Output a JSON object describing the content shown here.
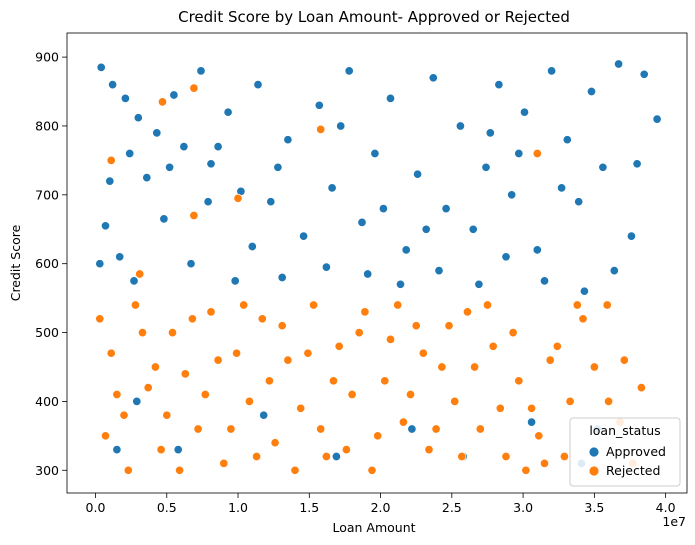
{
  "chart_data": {
    "type": "scatter",
    "title": "Credit Score by Loan Amount- Approved or Rejected",
    "xlabel": "Loan Amount",
    "ylabel": "Credit Score",
    "x_offset_label": "1e7",
    "xlim": [
      -2000000,
      41500000
    ],
    "ylim": [
      267,
      935
    ],
    "x_ticks": [
      0,
      5000000,
      10000000,
      15000000,
      20000000,
      25000000,
      30000000,
      35000000,
      40000000
    ],
    "x_tick_labels": [
      "0.0",
      "0.5",
      "1.0",
      "1.5",
      "2.0",
      "2.5",
      "3.0",
      "3.5",
      "4.0"
    ],
    "y_ticks": [
      300,
      400,
      500,
      600,
      700,
      800,
      900
    ],
    "y_tick_labels": [
      "300",
      "400",
      "500",
      "600",
      "700",
      "800",
      "900"
    ],
    "grid": false,
    "legend": {
      "title": "loan_status",
      "placement": "lower-right",
      "entries": [
        "Approved",
        "Rejected"
      ]
    },
    "series": [
      {
        "name": "Approved",
        "color": "#1f77b4",
        "points": [
          [
            400000,
            885
          ],
          [
            1200000,
            860
          ],
          [
            2100000,
            840
          ],
          [
            3000000,
            812
          ],
          [
            4300000,
            790
          ],
          [
            5500000,
            845
          ],
          [
            6200000,
            770
          ],
          [
            7400000,
            880
          ],
          [
            8100000,
            745
          ],
          [
            9300000,
            820
          ],
          [
            10200000,
            705
          ],
          [
            11400000,
            860
          ],
          [
            12300000,
            690
          ],
          [
            13500000,
            780
          ],
          [
            14600000,
            640
          ],
          [
            15700000,
            830
          ],
          [
            16600000,
            710
          ],
          [
            17800000,
            880
          ],
          [
            18700000,
            660
          ],
          [
            19600000,
            760
          ],
          [
            20700000,
            840
          ],
          [
            21800000,
            620
          ],
          [
            22600000,
            730
          ],
          [
            23700000,
            870
          ],
          [
            24600000,
            680
          ],
          [
            25600000,
            800
          ],
          [
            26500000,
            650
          ],
          [
            27400000,
            740
          ],
          [
            28300000,
            860
          ],
          [
            29200000,
            700
          ],
          [
            30100000,
            820
          ],
          [
            31000000,
            620
          ],
          [
            32000000,
            880
          ],
          [
            33100000,
            780
          ],
          [
            33900000,
            690
          ],
          [
            34800000,
            850
          ],
          [
            35600000,
            740
          ],
          [
            36700000,
            890
          ],
          [
            37600000,
            640
          ],
          [
            38500000,
            875
          ],
          [
            39400000,
            810
          ],
          [
            38000000,
            745
          ],
          [
            35200000,
            360
          ],
          [
            34300000,
            560
          ],
          [
            36400000,
            590
          ],
          [
            700000,
            655
          ],
          [
            1700000,
            610
          ],
          [
            2700000,
            575
          ],
          [
            3600000,
            725
          ],
          [
            4800000,
            665
          ],
          [
            6700000,
            600
          ],
          [
            7900000,
            690
          ],
          [
            9800000,
            575
          ],
          [
            11000000,
            625
          ],
          [
            13100000,
            580
          ],
          [
            16200000,
            595
          ],
          [
            19100000,
            585
          ],
          [
            21400000,
            570
          ],
          [
            24100000,
            590
          ],
          [
            26900000,
            570
          ],
          [
            28800000,
            610
          ],
          [
            31500000,
            575
          ],
          [
            300000,
            600
          ],
          [
            1000000,
            720
          ],
          [
            2400000,
            760
          ],
          [
            5200000,
            740
          ],
          [
            8600000,
            770
          ],
          [
            12800000,
            740
          ],
          [
            17200000,
            800
          ],
          [
            20200000,
            680
          ],
          [
            23200000,
            650
          ],
          [
            27700000,
            790
          ],
          [
            29700000,
            760
          ],
          [
            32700000,
            710
          ],
          [
            1500000,
            330
          ],
          [
            2900000,
            400
          ],
          [
            5800000,
            330
          ],
          [
            11800000,
            380
          ],
          [
            16900000,
            320
          ],
          [
            22200000,
            360
          ],
          [
            25800000,
            320
          ],
          [
            30600000,
            370
          ],
          [
            34100000,
            310
          ]
        ]
      },
      {
        "name": "Rejected",
        "color": "#ff7f0e",
        "points": [
          [
            300000,
            520
          ],
          [
            1100000,
            470
          ],
          [
            2000000,
            380
          ],
          [
            2800000,
            540
          ],
          [
            3700000,
            420
          ],
          [
            4600000,
            330
          ],
          [
            5400000,
            500
          ],
          [
            6300000,
            440
          ],
          [
            7200000,
            360
          ],
          [
            8100000,
            530
          ],
          [
            9000000,
            310
          ],
          [
            9900000,
            470
          ],
          [
            10800000,
            400
          ],
          [
            11700000,
            520
          ],
          [
            12600000,
            340
          ],
          [
            13500000,
            460
          ],
          [
            14400000,
            390
          ],
          [
            15300000,
            540
          ],
          [
            16200000,
            320
          ],
          [
            17100000,
            480
          ],
          [
            18000000,
            410
          ],
          [
            18900000,
            530
          ],
          [
            19800000,
            350
          ],
          [
            20700000,
            490
          ],
          [
            21600000,
            370
          ],
          [
            22500000,
            510
          ],
          [
            23400000,
            330
          ],
          [
            24300000,
            450
          ],
          [
            25200000,
            400
          ],
          [
            26100000,
            530
          ],
          [
            27000000,
            360
          ],
          [
            27900000,
            480
          ],
          [
            28800000,
            320
          ],
          [
            29700000,
            430
          ],
          [
            30600000,
            390
          ],
          [
            31500000,
            310
          ],
          [
            32400000,
            480
          ],
          [
            33300000,
            400
          ],
          [
            34200000,
            520
          ],
          [
            35000000,
            450
          ],
          [
            35900000,
            540
          ],
          [
            36800000,
            370
          ],
          [
            37700000,
            310
          ],
          [
            38300000,
            420
          ],
          [
            37100000,
            460
          ],
          [
            36000000,
            400
          ],
          [
            33800000,
            540
          ],
          [
            31900000,
            460
          ],
          [
            700000,
            350
          ],
          [
            1500000,
            410
          ],
          [
            2300000,
            300
          ],
          [
            3300000,
            500
          ],
          [
            4200000,
            450
          ],
          [
            5000000,
            380
          ],
          [
            5900000,
            300
          ],
          [
            6800000,
            520
          ],
          [
            7700000,
            410
          ],
          [
            8600000,
            460
          ],
          [
            9500000,
            360
          ],
          [
            10400000,
            540
          ],
          [
            11300000,
            320
          ],
          [
            12200000,
            430
          ],
          [
            13100000,
            510
          ],
          [
            14000000,
            300
          ],
          [
            14900000,
            470
          ],
          [
            15800000,
            360
          ],
          [
            16700000,
            430
          ],
          [
            17600000,
            330
          ],
          [
            18500000,
            500
          ],
          [
            19400000,
            300
          ],
          [
            20300000,
            430
          ],
          [
            21200000,
            540
          ],
          [
            22100000,
            410
          ],
          [
            23000000,
            470
          ],
          [
            23900000,
            360
          ],
          [
            24800000,
            510
          ],
          [
            25700000,
            320
          ],
          [
            26600000,
            450
          ],
          [
            27500000,
            540
          ],
          [
            28400000,
            390
          ],
          [
            29300000,
            500
          ],
          [
            30200000,
            300
          ],
          [
            31100000,
            350
          ],
          [
            32900000,
            320
          ],
          [
            6900000,
            855
          ],
          [
            10000000,
            695
          ],
          [
            4700000,
            835
          ],
          [
            1100000,
            750
          ],
          [
            6900000,
            670
          ],
          [
            15800000,
            795
          ],
          [
            3100000,
            585
          ],
          [
            31000000,
            760
          ]
        ]
      }
    ]
  }
}
